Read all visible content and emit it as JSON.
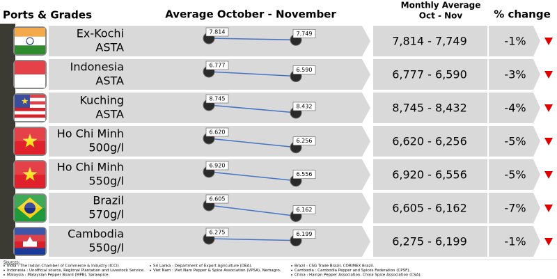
{
  "header": {
    "ports": "Ports & Grades",
    "average": "Average October - November",
    "monthly": "Monthly Average",
    "monthly_sub": "Oct - Nov",
    "change": "% change"
  },
  "rows": [
    {
      "port": "Ex-Kochi",
      "grade": "ASTA",
      "oct": {
        "value": 7.814,
        "label": "7.814"
      },
      "nov": {
        "value": 7.749,
        "label": "7.749"
      },
      "range": "7,814 - 7,749",
      "change": {
        "value": -1,
        "label": "-1%"
      }
    },
    {
      "port": "Indonesia",
      "grade": "ASTA",
      "oct": {
        "value": 6.777,
        "label": "6.777"
      },
      "nov": {
        "value": 6.59,
        "label": "6.590"
      },
      "range": "6,777 - 6,590",
      "change": {
        "value": -3,
        "label": "-3%"
      }
    },
    {
      "port": "Kuching",
      "grade": "ASTA",
      "oct": {
        "value": 8.745,
        "label": "8.745"
      },
      "nov": {
        "value": 8.432,
        "label": "8.432"
      },
      "range": "8,745 - 8,432",
      "change": {
        "value": -4,
        "label": "-4%"
      }
    },
    {
      "port": "Ho Chi Minh",
      "grade": "500g/l",
      "oct": {
        "value": 6.62,
        "label": "6.620"
      },
      "nov": {
        "value": 6.256,
        "label": "6.256"
      },
      "range": "6,620 - 6,256",
      "change": {
        "value": -5,
        "label": "-5%"
      }
    },
    {
      "port": "Ho Chi Minh",
      "grade": "550g/l",
      "oct": {
        "value": 6.92,
        "label": "6.920"
      },
      "nov": {
        "value": 6.556,
        "label": "6.556"
      },
      "range": "6,920 - 6,556",
      "change": {
        "value": -5,
        "label": "-5%"
      }
    },
    {
      "port": "Brazil",
      "grade": "570g/l",
      "oct": {
        "value": 6.605,
        "label": "6.605"
      },
      "nov": {
        "value": 6.162,
        "label": "6.162"
      },
      "range": "6,605 - 6,162",
      "change": {
        "value": -7,
        "label": "-7%"
      }
    },
    {
      "port": "Cambodia",
      "grade": "550g/l",
      "oct": {
        "value": 6.275,
        "label": "6.275"
      },
      "nov": {
        "value": 6.199,
        "label": "6.199"
      },
      "range": "6,275 - 6,199",
      "change": {
        "value": -1,
        "label": "-1%"
      }
    }
  ],
  "sources": {
    "title": "Sources:",
    "items": [
      "India : The Indian Chamber of Commerce & Industry (ICCI)",
      "Indonesia : Unofficial source, Regional Plantation and Livestock Service.",
      "Malaysia : Malaysian Pepper Board (MPB), Sarawpice.",
      "Sri Lanka : Department of Export Agriculture (DEA).",
      "Viet Nam : Viet Nam Pepper & Spice Association (VPSA), Nemagro.",
      "Brazil : CSG Trade Brazil, CORIMEX Brazil.",
      "Cambodia : Cambodia Pepper and Spices Federation (CPSF).",
      "China : Hainan Pepper Association, China Spice Association (CSA)."
    ]
  }
}
